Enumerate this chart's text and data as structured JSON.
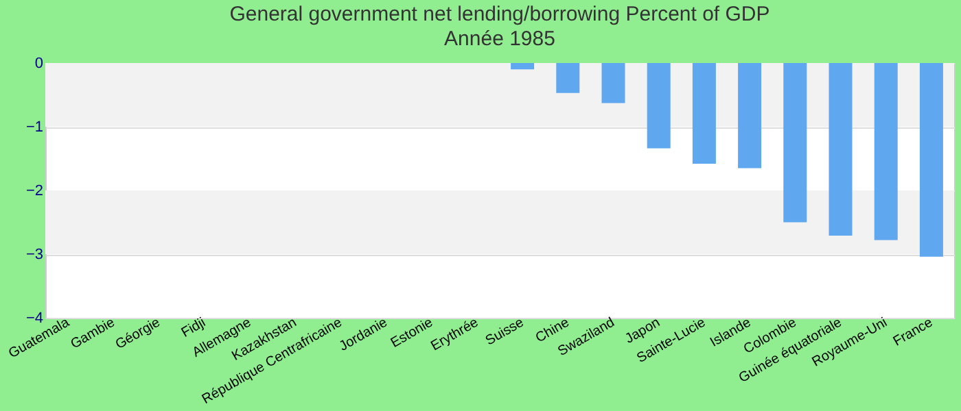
{
  "chart_data": {
    "type": "bar",
    "title": "General government net lending/borrowing  Percent of GDP",
    "subtitle": "Année 1985",
    "categories": [
      "Guatemala",
      "Gambie",
      "Géorgie",
      "Fidji",
      "Allemagne",
      "Kazakhstan",
      "République Centrafricaine",
      "Jordanie",
      "Estonie",
      "Erythrée",
      "Suisse",
      "Chine",
      "Swaziland",
      "Japon",
      "Sainte-Lucie",
      "Islande",
      "Colombie",
      "Guinée équatoriale",
      "Royaume-Uni",
      "France"
    ],
    "values": [
      0,
      0,
      0,
      0,
      0,
      0,
      0,
      0,
      0,
      0,
      -0.1,
      -0.47,
      -0.63,
      -1.34,
      -1.58,
      -1.65,
      -2.5,
      -2.71,
      -2.78,
      -3.04
    ],
    "color": "#5fa8f0",
    "ylim": [
      -4,
      0
    ],
    "yticks": [
      -4,
      -3,
      -2,
      -1,
      0
    ],
    "grid": "y"
  }
}
